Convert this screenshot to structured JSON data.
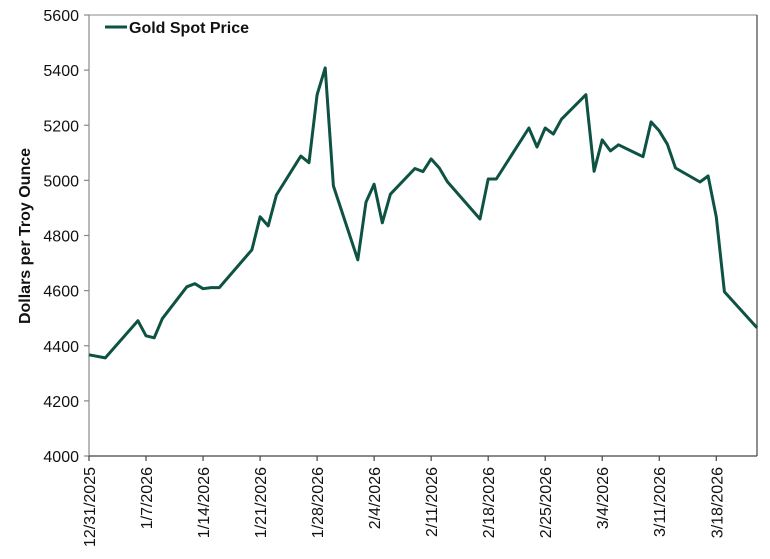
{
  "chart_data": {
    "type": "line",
    "title": "",
    "xlabel": "",
    "ylabel": "Dollars per Troy Ounce",
    "ylim": [
      4000,
      5600
    ],
    "yticks": [
      4000,
      4200,
      4400,
      4600,
      4800,
      5000,
      5200,
      5400,
      5600
    ],
    "xlim": [
      "12/31/2025",
      "3/23/2026"
    ],
    "xticks": [
      "12/31/2025",
      "1/7/2026",
      "1/14/2026",
      "1/21/2026",
      "1/28/2026",
      "2/4/2026",
      "2/11/2026",
      "2/18/2026",
      "2/25/2026",
      "3/4/2026",
      "3/11/2026",
      "3/18/2026"
    ],
    "grid": false,
    "legend": {
      "position": "top-left",
      "entries": [
        "Gold Spot Price"
      ]
    },
    "series": [
      {
        "name": "Gold Spot Price",
        "color": "#0d5242",
        "x": [
          "12/31/2025",
          "1/2/2026",
          "1/6/2026",
          "1/7/2026",
          "1/8/2026",
          "1/9/2026",
          "1/12/2026",
          "1/13/2026",
          "1/14/2026",
          "1/15/2026",
          "1/16/2026",
          "1/20/2026",
          "1/21/2026",
          "1/22/2026",
          "1/23/2026",
          "1/26/2026",
          "1/27/2026",
          "1/28/2026",
          "1/29/2026",
          "1/30/2026",
          "2/2/2026",
          "2/3/2026",
          "2/4/2026",
          "2/5/2026",
          "2/6/2026",
          "2/9/2026",
          "2/10/2026",
          "2/11/2026",
          "2/12/2026",
          "2/13/2026",
          "2/17/2026",
          "2/18/2026",
          "2/19/2026",
          "2/23/2026",
          "2/24/2026",
          "2/25/2026",
          "2/26/2026",
          "2/27/2026",
          "3/2/2026",
          "3/3/2026",
          "3/4/2026",
          "3/5/2026",
          "3/6/2026",
          "3/9/2026",
          "3/10/2026",
          "3/11/2026",
          "3/12/2026",
          "3/13/2026",
          "3/16/2026",
          "3/17/2026",
          "3/18/2026",
          "3/19/2026",
          "3/23/2026"
        ],
        "values": [
          4367,
          4356,
          4491,
          4436,
          4429,
          4498,
          4614,
          4625,
          4607,
          4611,
          4611,
          4748,
          4868,
          4835,
          4947,
          5088,
          5064,
          5311,
          5408,
          4980,
          4712,
          4921,
          4986,
          4846,
          4950,
          5043,
          5032,
          5078,
          5045,
          4995,
          4860,
          5005,
          5005,
          5190,
          5121,
          5190,
          5168,
          5222,
          5311,
          5033,
          5147,
          5107,
          5129,
          5086,
          5212,
          5180,
          5131,
          5045,
          4994,
          5016,
          4867,
          4596,
          4465
        ]
      }
    ]
  }
}
